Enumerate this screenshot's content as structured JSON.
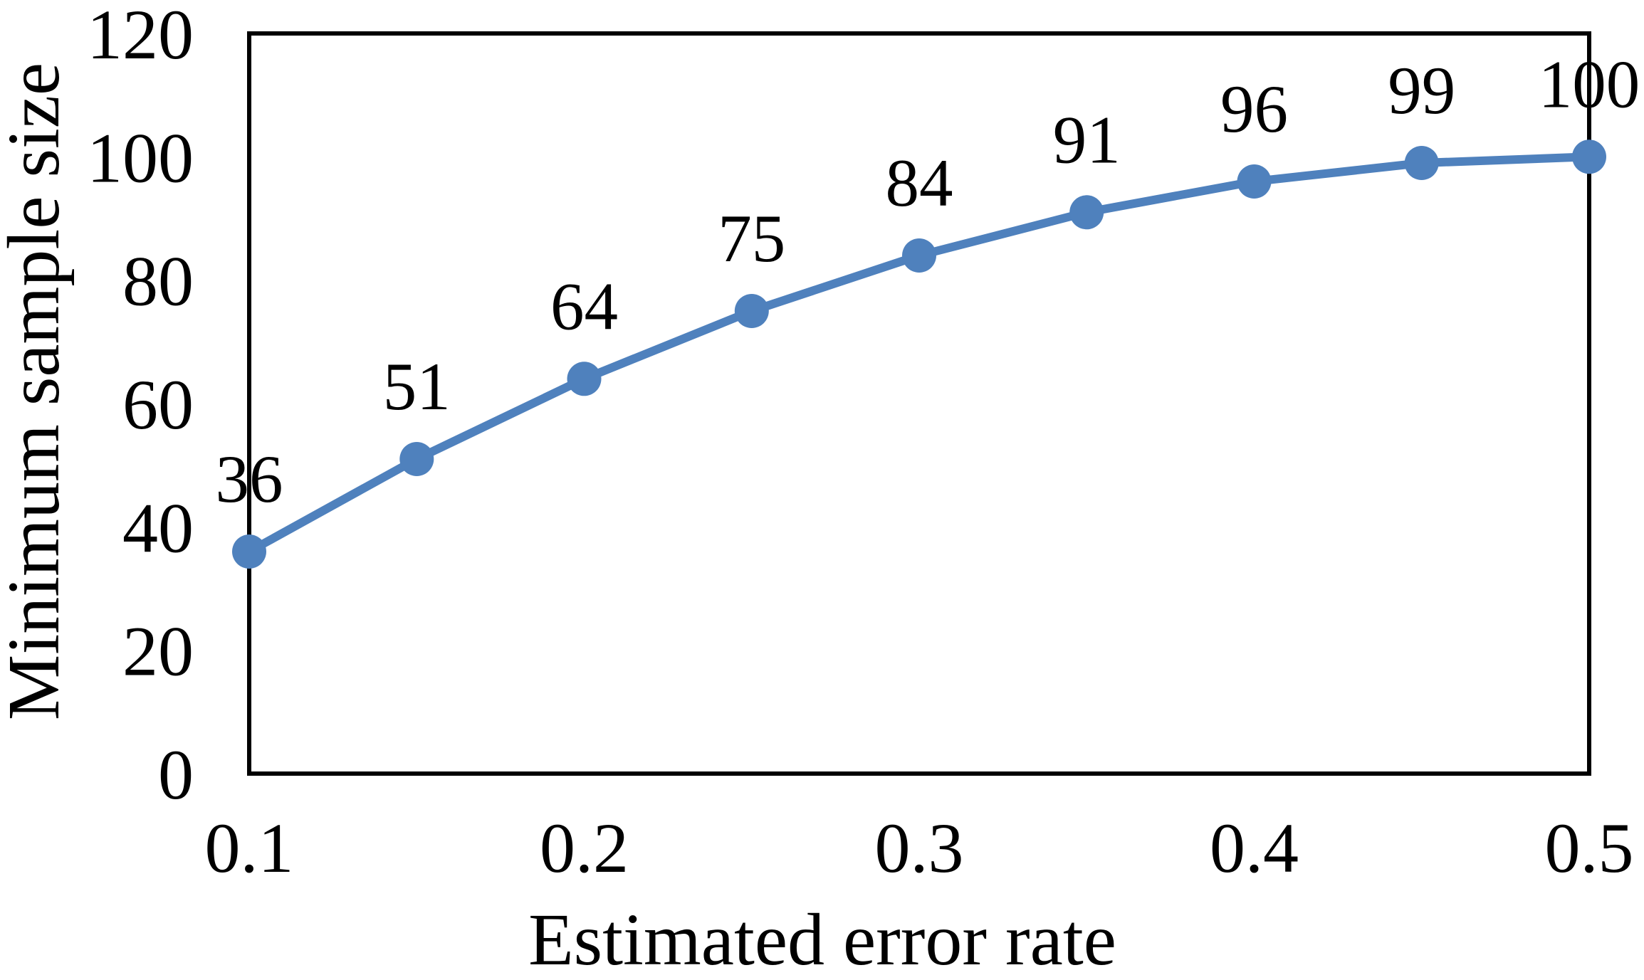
{
  "chart_data": {
    "type": "line",
    "x": [
      0.1,
      0.15,
      0.2,
      0.25,
      0.3,
      0.35,
      0.4,
      0.45,
      0.5
    ],
    "values": [
      36,
      51,
      64,
      75,
      84,
      91,
      96,
      99,
      100
    ],
    "data_labels": [
      "36",
      "51",
      "64",
      "75",
      "84",
      "91",
      "96",
      "99",
      "100"
    ],
    "title": "",
    "xlabel": "Estimated error rate",
    "ylabel": "Minimum sample size",
    "xlim": [
      0.1,
      0.5
    ],
    "ylim": [
      0,
      120
    ],
    "x_ticks": [
      {
        "value": 0.1,
        "label": "0.1"
      },
      {
        "value": 0.2,
        "label": "0.2"
      },
      {
        "value": 0.3,
        "label": "0.3"
      },
      {
        "value": 0.4,
        "label": "0.4"
      },
      {
        "value": 0.5,
        "label": "0.5"
      }
    ],
    "y_ticks": [
      {
        "value": 0,
        "label": "0"
      },
      {
        "value": 20,
        "label": "20"
      },
      {
        "value": 40,
        "label": "40"
      },
      {
        "value": 60,
        "label": "60"
      },
      {
        "value": 80,
        "label": "80"
      },
      {
        "value": 100,
        "label": "100"
      },
      {
        "value": 120,
        "label": "120"
      }
    ],
    "grid": false,
    "legend_position": "none",
    "marker_shape": "circle",
    "colors": {
      "series": "#4F81BD",
      "axis": "#000000",
      "text": "#000000",
      "background": "#FFFFFF"
    }
  }
}
